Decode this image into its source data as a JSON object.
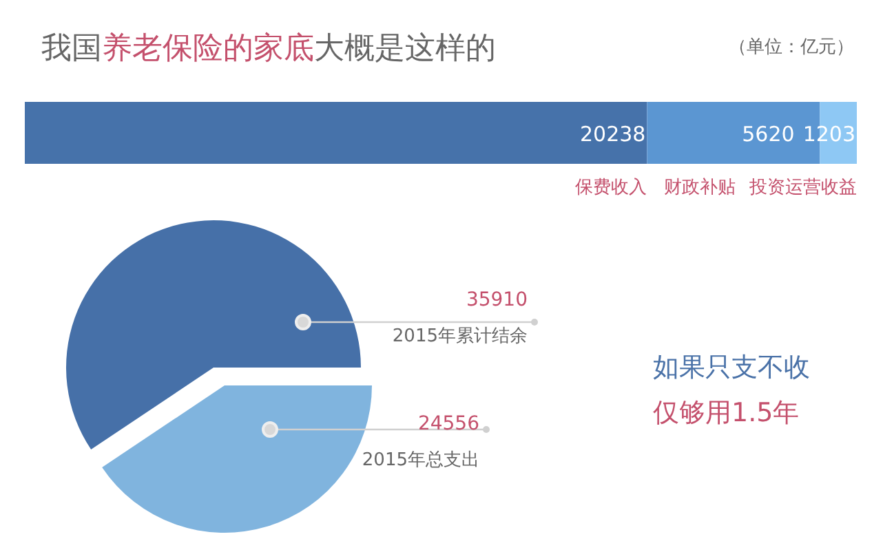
{
  "chart_data": [
    {
      "type": "bar",
      "title": "我国养老保险的家底大概是这样的",
      "subtitle": "（单位：亿元）",
      "orientation": "horizontal",
      "stacked": true,
      "data_labels": true,
      "categories": [
        null
      ],
      "series": [
        {
          "name": "保费收入",
          "color": "#4672aa",
          "values": [
            20238
          ]
        },
        {
          "name": "财政补贴",
          "color": "#5b96d2",
          "values": [
            5620
          ]
        },
        {
          "name": "投资运营收益",
          "color": "#8ec8f4",
          "values": [
            1203
          ]
        }
      ]
    },
    {
      "type": "pie",
      "data_labels": true,
      "categories": [
        "2015年累计结余",
        "2015年总支出"
      ],
      "values": [
        35910,
        24556
      ],
      "colors": [
        "#4670a8",
        "#80b4de"
      ],
      "annotations": [
        "如果只支不收",
        "仅够用1.5年"
      ]
    }
  ]
}
